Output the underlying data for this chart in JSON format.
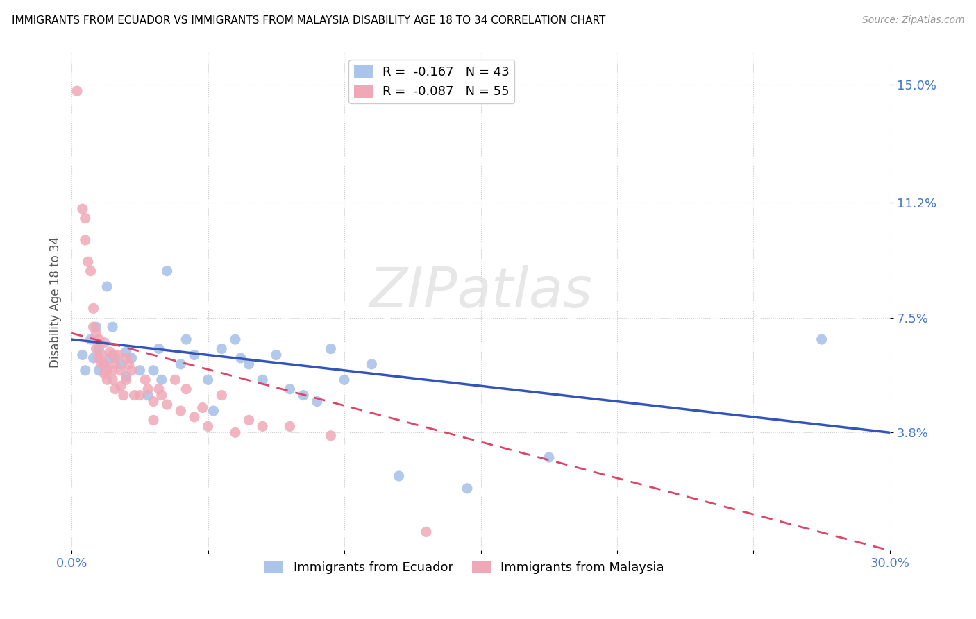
{
  "title": "IMMIGRANTS FROM ECUADOR VS IMMIGRANTS FROM MALAYSIA DISABILITY AGE 18 TO 34 CORRELATION CHART",
  "source": "Source: ZipAtlas.com",
  "ylabel": "Disability Age 18 to 34",
  "xlim": [
    0.0,
    0.3
  ],
  "ylim": [
    0.0,
    0.16
  ],
  "ytick_positions": [
    0.038,
    0.075,
    0.112,
    0.15
  ],
  "ytick_labels": [
    "3.8%",
    "7.5%",
    "11.2%",
    "15.0%"
  ],
  "legend_r1": "R =  -0.167   N = 43",
  "legend_r2": "R =  -0.087   N = 55",
  "color_ecuador": "#aac4ea",
  "color_malaysia": "#f0a8b8",
  "line_color_ecuador": "#3355bb",
  "line_color_malaysia": "#dd4466",
  "watermark": "ZIPatlas",
  "ecuador_scatter_x": [
    0.004,
    0.005,
    0.007,
    0.008,
    0.009,
    0.01,
    0.01,
    0.012,
    0.013,
    0.014,
    0.015,
    0.016,
    0.018,
    0.02,
    0.02,
    0.022,
    0.025,
    0.028,
    0.03,
    0.032,
    0.033,
    0.035,
    0.04,
    0.042,
    0.045,
    0.05,
    0.052,
    0.055,
    0.06,
    0.062,
    0.065,
    0.07,
    0.075,
    0.08,
    0.085,
    0.09,
    0.095,
    0.1,
    0.11,
    0.12,
    0.145,
    0.175,
    0.275
  ],
  "ecuador_scatter_y": [
    0.063,
    0.058,
    0.068,
    0.062,
    0.072,
    0.065,
    0.058,
    0.06,
    0.085,
    0.062,
    0.072,
    0.062,
    0.06,
    0.064,
    0.056,
    0.062,
    0.058,
    0.05,
    0.058,
    0.065,
    0.055,
    0.09,
    0.06,
    0.068,
    0.063,
    0.055,
    0.045,
    0.065,
    0.068,
    0.062,
    0.06,
    0.055,
    0.063,
    0.052,
    0.05,
    0.048,
    0.065,
    0.055,
    0.06,
    0.024,
    0.02,
    0.03,
    0.068
  ],
  "malaysia_scatter_x": [
    0.002,
    0.004,
    0.005,
    0.005,
    0.006,
    0.007,
    0.008,
    0.008,
    0.009,
    0.009,
    0.01,
    0.01,
    0.011,
    0.011,
    0.012,
    0.012,
    0.012,
    0.013,
    0.013,
    0.014,
    0.015,
    0.015,
    0.015,
    0.016,
    0.016,
    0.017,
    0.018,
    0.018,
    0.019,
    0.02,
    0.02,
    0.021,
    0.022,
    0.023,
    0.025,
    0.027,
    0.028,
    0.03,
    0.03,
    0.032,
    0.033,
    0.035,
    0.038,
    0.04,
    0.042,
    0.045,
    0.048,
    0.05,
    0.055,
    0.06,
    0.065,
    0.07,
    0.08,
    0.095,
    0.13
  ],
  "malaysia_scatter_y": [
    0.148,
    0.11,
    0.107,
    0.1,
    0.093,
    0.09,
    0.078,
    0.072,
    0.07,
    0.065,
    0.068,
    0.062,
    0.063,
    0.06,
    0.067,
    0.06,
    0.057,
    0.058,
    0.055,
    0.064,
    0.063,
    0.058,
    0.055,
    0.06,
    0.052,
    0.063,
    0.058,
    0.053,
    0.05,
    0.062,
    0.055,
    0.06,
    0.058,
    0.05,
    0.05,
    0.055,
    0.052,
    0.048,
    0.042,
    0.052,
    0.05,
    0.047,
    0.055,
    0.045,
    0.052,
    0.043,
    0.046,
    0.04,
    0.05,
    0.038,
    0.042,
    0.04,
    0.04,
    0.037,
    0.006
  ],
  "ecuador_line_x": [
    0.0,
    0.3
  ],
  "ecuador_line_y": [
    0.068,
    0.038
  ],
  "malaysia_line_x": [
    0.0,
    0.3
  ],
  "malaysia_line_y": [
    0.07,
    0.0
  ]
}
